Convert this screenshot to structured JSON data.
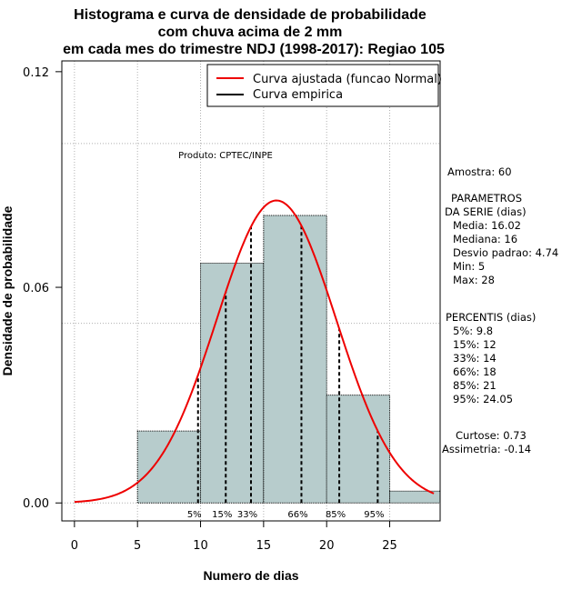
{
  "chart_data": {
    "type": "histogram",
    "title_lines": [
      "Histograma e curva de densidade de probabilidade",
      "com chuva acima de 2 mm",
      "em cada mes do trimestre NDJ (1998-2017): Regiao 105"
    ],
    "xlabel": "Numero de dias",
    "ylabel": "Densidade de probabilidade",
    "xlim": [
      -1,
      29
    ],
    "ylim": [
      -0.005,
      0.123
    ],
    "x_ticks": [
      0,
      5,
      10,
      15,
      20,
      25
    ],
    "y_ticks": [
      {
        "value": 0.0,
        "label": "0.00"
      },
      {
        "value": 0.06,
        "label": "0.06"
      },
      {
        "value": 0.12,
        "label": "0.12"
      }
    ],
    "grid_x": [
      0,
      5,
      10,
      15,
      20,
      25
    ],
    "grid_y": [
      0.0,
      0.05,
      0.1
    ],
    "bins": [
      {
        "x0": 5,
        "x1": 10,
        "density": 0.02
      },
      {
        "x0": 10,
        "x1": 15,
        "density": 0.0667
      },
      {
        "x0": 15,
        "x1": 20,
        "density": 0.08
      },
      {
        "x0": 20,
        "x1": 25,
        "density": 0.03
      },
      {
        "x0": 25,
        "x1": 30,
        "density": 0.0033
      }
    ],
    "bar_color": "#b7cccc",
    "normal_curve": {
      "mean": 16.02,
      "sd": 4.74,
      "x_from": 0,
      "x_to": 28.5,
      "color": "#ee0000"
    },
    "percentile_lines": [
      {
        "label": "5%",
        "x": 9.8
      },
      {
        "label": "15%",
        "x": 12
      },
      {
        "label": "33%",
        "x": 14
      },
      {
        "label": "66%",
        "x": 18
      },
      {
        "label": "85%",
        "x": 21
      },
      {
        "label": "95%",
        "x": 24.05
      }
    ],
    "legend": [
      {
        "label": "Curva ajustada (funcao Normal)",
        "color": "#ee0000"
      },
      {
        "label": "Curva empirica",
        "color": "#000000"
      }
    ],
    "product_label": "Produto: CPTEC/INPE"
  },
  "side_panel": {
    "amostra": "Amostra: 60",
    "params_title_1": "PARAMETROS",
    "params_title_2": "DA SERIE (dias)",
    "media": "Media: 16.02",
    "mediana": "Mediana: 16",
    "desvio": "Desvio padrao: 4.74",
    "min": "Min: 5",
    "max": "Max: 28",
    "percentis_title": "PERCENTIS (dias)",
    "p5": "5%: 9.8",
    "p15": "15%: 12",
    "p33": "33%: 14",
    "p66": "66%: 18",
    "p85": "85%: 21",
    "p95": "95%: 24.05",
    "curtose": "Curtose: 0.73",
    "assimetria": "Assimetria: -0.14"
  }
}
